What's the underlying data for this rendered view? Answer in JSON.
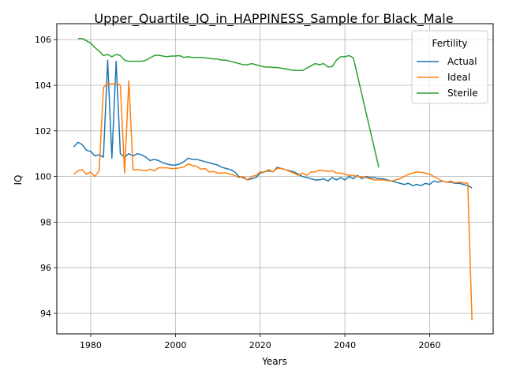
{
  "chart_data": {
    "type": "line",
    "title": "Upper_Quartile_IQ_in_HAPPINESS_Sample for Black_Male",
    "xlabel": "Years",
    "ylabel": "IQ",
    "xlim": [
      1972,
      2075
    ],
    "ylim": [
      93.1,
      106.7
    ],
    "x_ticks": [
      1980,
      2000,
      2020,
      2040,
      2060
    ],
    "y_ticks": [
      94,
      96,
      98,
      100,
      102,
      104,
      106
    ],
    "grid": true,
    "legend": {
      "title": "Fertility",
      "placement": "top-right"
    },
    "series": [
      {
        "name": "Actual",
        "color": "#1f77b4",
        "points": [
          [
            1976,
            101.3
          ],
          [
            1977,
            101.5
          ],
          [
            1978,
            101.4
          ],
          [
            1979,
            101.15
          ],
          [
            1980,
            101.1
          ],
          [
            1981,
            100.9
          ],
          [
            1982,
            100.95
          ],
          [
            1983,
            100.85
          ],
          [
            1984,
            105.1
          ],
          [
            1985,
            100.8
          ],
          [
            1986,
            105.05
          ],
          [
            1987,
            101.0
          ],
          [
            1988,
            100.85
          ],
          [
            1989,
            101.0
          ],
          [
            1990,
            100.9
          ],
          [
            1991,
            101.0
          ],
          [
            1992,
            100.95
          ],
          [
            1993,
            100.85
          ],
          [
            1994,
            100.7
          ],
          [
            1995,
            100.75
          ],
          [
            1996,
            100.7
          ],
          [
            1997,
            100.6
          ],
          [
            1998,
            100.55
          ],
          [
            1999,
            100.5
          ],
          [
            2000,
            100.5
          ],
          [
            2001,
            100.55
          ],
          [
            2002,
            100.65
          ],
          [
            2003,
            100.8
          ],
          [
            2004,
            100.75
          ],
          [
            2005,
            100.75
          ],
          [
            2006,
            100.7
          ],
          [
            2007,
            100.65
          ],
          [
            2008,
            100.6
          ],
          [
            2009,
            100.55
          ],
          [
            2010,
            100.5
          ],
          [
            2011,
            100.4
          ],
          [
            2012,
            100.35
          ],
          [
            2013,
            100.3
          ],
          [
            2014,
            100.2
          ],
          [
            2015,
            100.0
          ],
          [
            2016,
            99.95
          ],
          [
            2017,
            99.85
          ],
          [
            2018,
            99.9
          ],
          [
            2019,
            99.95
          ],
          [
            2020,
            100.15
          ],
          [
            2021,
            100.2
          ],
          [
            2022,
            100.25
          ],
          [
            2023,
            100.2
          ],
          [
            2024,
            100.4
          ],
          [
            2025,
            100.35
          ],
          [
            2026,
            100.3
          ],
          [
            2027,
            100.25
          ],
          [
            2028,
            100.2
          ],
          [
            2029,
            100.1
          ],
          [
            2030,
            100.0
          ],
          [
            2031,
            99.95
          ],
          [
            2032,
            99.9
          ],
          [
            2033,
            99.85
          ],
          [
            2034,
            99.85
          ],
          [
            2035,
            99.9
          ],
          [
            2036,
            99.8
          ],
          [
            2037,
            99.95
          ],
          [
            2038,
            99.85
          ],
          [
            2039,
            99.95
          ],
          [
            2040,
            99.85
          ],
          [
            2041,
            100.0
          ],
          [
            2042,
            99.9
          ],
          [
            2043,
            100.05
          ],
          [
            2044,
            99.9
          ],
          [
            2045,
            100.0
          ],
          [
            2046,
            99.95
          ],
          [
            2047,
            99.95
          ],
          [
            2048,
            99.9
          ],
          [
            2049,
            99.9
          ],
          [
            2050,
            99.85
          ],
          [
            2051,
            99.8
          ],
          [
            2052,
            99.75
          ],
          [
            2053,
            99.7
          ],
          [
            2054,
            99.65
          ],
          [
            2055,
            99.7
          ],
          [
            2056,
            99.6
          ],
          [
            2057,
            99.65
          ],
          [
            2058,
            99.6
          ],
          [
            2059,
            99.7
          ],
          [
            2060,
            99.65
          ],
          [
            2061,
            99.8
          ],
          [
            2062,
            99.75
          ],
          [
            2063,
            99.8
          ],
          [
            2064,
            99.75
          ],
          [
            2065,
            99.75
          ],
          [
            2066,
            99.7
          ],
          [
            2067,
            99.7
          ],
          [
            2068,
            99.65
          ],
          [
            2069,
            99.6
          ],
          [
            2070,
            99.5
          ]
        ]
      },
      {
        "name": "Ideal",
        "color": "#ff7f0e",
        "points": [
          [
            1976,
            100.1
          ],
          [
            1977,
            100.25
          ],
          [
            1978,
            100.3
          ],
          [
            1979,
            100.1
          ],
          [
            1980,
            100.2
          ],
          [
            1981,
            100.0
          ],
          [
            1982,
            100.25
          ],
          [
            1983,
            103.9
          ],
          [
            1984,
            104.1
          ],
          [
            1985,
            104.05
          ],
          [
            1986,
            104.1
          ],
          [
            1987,
            104.0
          ],
          [
            1988,
            100.15
          ],
          [
            1989,
            104.2
          ],
          [
            1990,
            100.3
          ],
          [
            1991,
            100.3
          ],
          [
            1992,
            100.28
          ],
          [
            1993,
            100.25
          ],
          [
            1994,
            100.32
          ],
          [
            1995,
            100.25
          ],
          [
            1996,
            100.38
          ],
          [
            1997,
            100.38
          ],
          [
            1998,
            100.38
          ],
          [
            1999,
            100.35
          ],
          [
            2000,
            100.35
          ],
          [
            2001,
            100.38
          ],
          [
            2002,
            100.42
          ],
          [
            2003,
            100.55
          ],
          [
            2004,
            100.48
          ],
          [
            2005,
            100.45
          ],
          [
            2006,
            100.32
          ],
          [
            2007,
            100.35
          ],
          [
            2008,
            100.2
          ],
          [
            2009,
            100.22
          ],
          [
            2010,
            100.15
          ],
          [
            2011,
            100.15
          ],
          [
            2012,
            100.15
          ],
          [
            2013,
            100.1
          ],
          [
            2014,
            100.05
          ],
          [
            2015,
            99.95
          ],
          [
            2016,
            100.0
          ],
          [
            2017,
            99.85
          ],
          [
            2018,
            100.0
          ],
          [
            2019,
            100.05
          ],
          [
            2020,
            100.2
          ],
          [
            2021,
            100.2
          ],
          [
            2022,
            100.3
          ],
          [
            2023,
            100.2
          ],
          [
            2024,
            100.35
          ],
          [
            2025,
            100.35
          ],
          [
            2026,
            100.3
          ],
          [
            2027,
            100.22
          ],
          [
            2028,
            100.15
          ],
          [
            2029,
            100.05
          ],
          [
            2030,
            100.15
          ],
          [
            2031,
            100.05
          ],
          [
            2032,
            100.2
          ],
          [
            2033,
            100.2
          ],
          [
            2034,
            100.28
          ],
          [
            2035,
            100.25
          ],
          [
            2036,
            100.22
          ],
          [
            2037,
            100.25
          ],
          [
            2038,
            100.15
          ],
          [
            2039,
            100.15
          ],
          [
            2040,
            100.1
          ],
          [
            2041,
            100.05
          ],
          [
            2042,
            100.05
          ],
          [
            2043,
            100.0
          ],
          [
            2044,
            100.0
          ],
          [
            2045,
            99.95
          ],
          [
            2046,
            99.9
          ],
          [
            2047,
            99.85
          ],
          [
            2048,
            99.85
          ],
          [
            2049,
            99.85
          ],
          [
            2050,
            99.82
          ],
          [
            2051,
            99.8
          ],
          [
            2052,
            99.85
          ],
          [
            2053,
            99.9
          ],
          [
            2054,
            100.0
          ],
          [
            2055,
            100.1
          ],
          [
            2056,
            100.15
          ],
          [
            2057,
            100.2
          ],
          [
            2058,
            100.18
          ],
          [
            2059,
            100.15
          ],
          [
            2060,
            100.1
          ],
          [
            2061,
            100.0
          ],
          [
            2062,
            99.9
          ],
          [
            2063,
            99.8
          ],
          [
            2064,
            99.75
          ],
          [
            2065,
            99.8
          ],
          [
            2066,
            99.72
          ],
          [
            2067,
            99.75
          ],
          [
            2068,
            99.72
          ],
          [
            2069,
            99.7
          ],
          [
            2070,
            93.7
          ]
        ]
      },
      {
        "name": "Sterile",
        "color": "#2ca02c",
        "points": [
          [
            1977,
            106.05
          ],
          [
            1978,
            106.05
          ],
          [
            1979,
            105.95
          ],
          [
            1980,
            105.85
          ],
          [
            1981,
            105.65
          ],
          [
            1982,
            105.5
          ],
          [
            1983,
            105.3
          ],
          [
            1984,
            105.35
          ],
          [
            1985,
            105.25
          ],
          [
            1986,
            105.35
          ],
          [
            1987,
            105.3
          ],
          [
            1988,
            105.1
          ],
          [
            1989,
            105.05
          ],
          [
            1990,
            105.05
          ],
          [
            1991,
            105.05
          ],
          [
            1992,
            105.05
          ],
          [
            1993,
            105.1
          ],
          [
            1994,
            105.2
          ],
          [
            1995,
            105.3
          ],
          [
            1996,
            105.32
          ],
          [
            1997,
            105.28
          ],
          [
            1998,
            105.25
          ],
          [
            1999,
            105.28
          ],
          [
            2000,
            105.28
          ],
          [
            2001,
            105.3
          ],
          [
            2002,
            105.22
          ],
          [
            2003,
            105.25
          ],
          [
            2004,
            105.22
          ],
          [
            2005,
            105.22
          ],
          [
            2006,
            105.22
          ],
          [
            2007,
            105.2
          ],
          [
            2008,
            105.18
          ],
          [
            2009,
            105.15
          ],
          [
            2010,
            105.15
          ],
          [
            2011,
            105.1
          ],
          [
            2012,
            105.1
          ],
          [
            2013,
            105.05
          ],
          [
            2014,
            105.0
          ],
          [
            2015,
            104.95
          ],
          [
            2016,
            104.9
          ],
          [
            2017,
            104.9
          ],
          [
            2018,
            104.95
          ],
          [
            2019,
            104.9
          ],
          [
            2020,
            104.85
          ],
          [
            2021,
            104.8
          ],
          [
            2022,
            104.8
          ],
          [
            2023,
            104.78
          ],
          [
            2024,
            104.78
          ],
          [
            2025,
            104.75
          ],
          [
            2026,
            104.72
          ],
          [
            2027,
            104.68
          ],
          [
            2028,
            104.65
          ],
          [
            2029,
            104.65
          ],
          [
            2030,
            104.65
          ],
          [
            2031,
            104.75
          ],
          [
            2032,
            104.85
          ],
          [
            2033,
            104.95
          ],
          [
            2034,
            104.9
          ],
          [
            2035,
            104.95
          ],
          [
            2036,
            104.8
          ],
          [
            2037,
            104.82
          ],
          [
            2038,
            105.1
          ],
          [
            2039,
            105.25
          ],
          [
            2040,
            105.25
          ],
          [
            2041,
            105.3
          ],
          [
            2042,
            105.2
          ],
          [
            2048,
            100.4
          ]
        ]
      }
    ]
  }
}
